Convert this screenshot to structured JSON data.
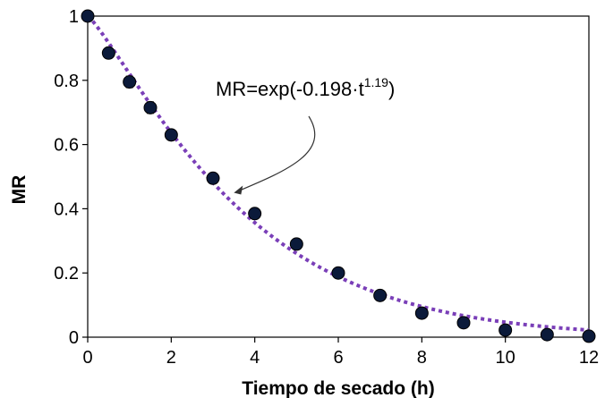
{
  "chart_data": {
    "type": "scatter",
    "xlabel": "Tiempo de secado (h)",
    "ylabel": "MR",
    "xlim": [
      0,
      12
    ],
    "ylim": [
      0,
      1
    ],
    "x_ticks": [
      "0",
      "2",
      "4",
      "6",
      "8",
      "10",
      "12"
    ],
    "y_ticks": [
      "0",
      "0.2",
      "0.4",
      "0.6",
      "0.8",
      "1"
    ],
    "grid": false,
    "series": [
      {
        "kind": "points",
        "marker_color": "#0b1a3a",
        "points": [
          {
            "x": 0,
            "y": 1.0,
            "err": 0.0
          },
          {
            "x": 0.5,
            "y": 0.885,
            "err": 0.015
          },
          {
            "x": 1,
            "y": 0.795,
            "err": 0.018
          },
          {
            "x": 1.5,
            "y": 0.715,
            "err": 0.018
          },
          {
            "x": 2,
            "y": 0.63,
            "err": 0.015
          },
          {
            "x": 3,
            "y": 0.495,
            "err": 0.015
          },
          {
            "x": 4,
            "y": 0.385,
            "err": 0.012
          },
          {
            "x": 5,
            "y": 0.29,
            "err": 0.01
          },
          {
            "x": 6,
            "y": 0.2,
            "err": 0.01
          },
          {
            "x": 7,
            "y": 0.13,
            "err": 0.01
          },
          {
            "x": 8,
            "y": 0.075,
            "err": 0.012
          },
          {
            "x": 9,
            "y": 0.045,
            "err": 0.01
          },
          {
            "x": 10,
            "y": 0.022,
            "err": 0.008
          },
          {
            "x": 11,
            "y": 0.008,
            "err": 0.005
          },
          {
            "x": 12,
            "y": 0.003,
            "err": 0.0
          }
        ]
      },
      {
        "kind": "fit",
        "color": "#7a3fb8",
        "style": "dotted",
        "model": {
          "k": 0.198,
          "n": 1.19
        }
      }
    ],
    "annotation": {
      "text_main": "MR=exp(-0.198·t",
      "text_sup": "1.19",
      "text_close": ")",
      "arrow_to": {
        "x": 3.5,
        "y": 0.45
      }
    }
  }
}
